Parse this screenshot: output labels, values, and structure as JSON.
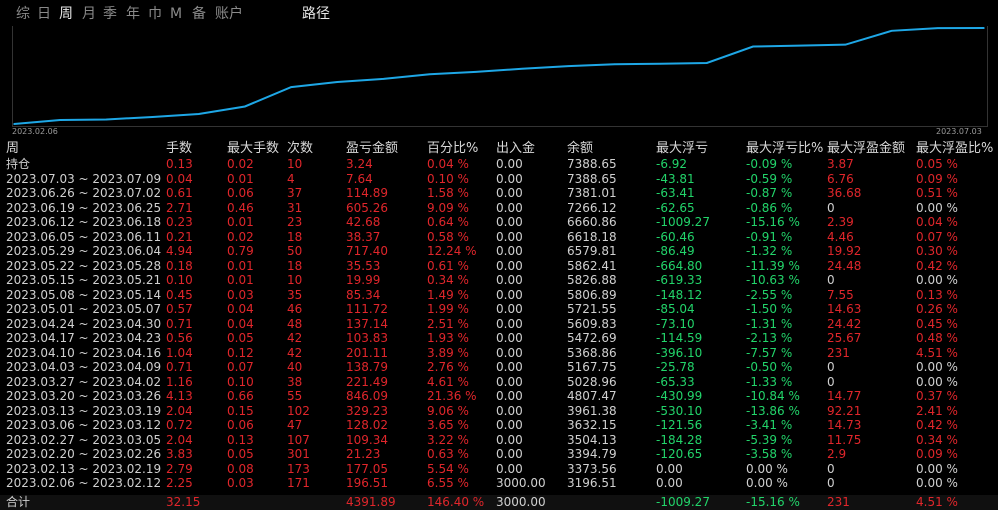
{
  "tabs": [
    {
      "id": "zong",
      "label": "综"
    },
    {
      "id": "ri",
      "label": "日"
    },
    {
      "id": "zhou",
      "label": "周",
      "active": true
    },
    {
      "id": "yue",
      "label": "月"
    },
    {
      "id": "ji",
      "label": "季"
    },
    {
      "id": "nian",
      "label": "年"
    },
    {
      "id": "jin",
      "label": "巾"
    },
    {
      "id": "m",
      "label": "M"
    },
    {
      "id": "bei",
      "label": "备"
    },
    {
      "id": "zhanghu",
      "label": "账户"
    }
  ],
  "path_tab": "路径",
  "chart_data": {
    "type": "line",
    "x": [
      "2023.02.06",
      "2023.02.13",
      "2023.02.20",
      "2023.02.27",
      "2023.03.06",
      "2023.03.13",
      "2023.03.20",
      "2023.03.27",
      "2023.04.03",
      "2023.04.10",
      "2023.04.17",
      "2023.04.24",
      "2023.05.01",
      "2023.05.08",
      "2023.05.15",
      "2023.05.22",
      "2023.05.29",
      "2023.06.05",
      "2023.06.12",
      "2023.06.19",
      "2023.06.26",
      "2023.07.03"
    ],
    "values": [
      3196.51,
      3373.56,
      3394.79,
      3504.13,
      3632.15,
      3961.38,
      4807.47,
      5028.96,
      5167.75,
      5368.86,
      5472.69,
      5609.83,
      5721.55,
      5806.89,
      5826.88,
      5862.41,
      6579.81,
      6618.18,
      6660.86,
      7266.12,
      7381.01,
      7388.65
    ],
    "xlabel_start": "2023.02.06",
    "xlabel_end": "2023.07.03",
    "line_color": "#1ea7e6",
    "grid": false
  },
  "table": {
    "headers": [
      "周",
      "手数",
      "最大手数",
      "次数",
      "盈亏金额",
      "百分比%",
      "出入金",
      "余额",
      "最大浮亏",
      "最大浮亏比%",
      "最大浮盈金额",
      "最大浮盈比%"
    ],
    "rows": [
      {
        "period": "持仓",
        "lots": "0.13",
        "max_lots": "0.02",
        "count": "10",
        "pnl": "3.24",
        "pct": "0.04 %",
        "io": "0.00",
        "balance": "7388.65",
        "max_dd": "-6.92",
        "max_dd_pct": "-0.09 %",
        "max_fp": "3.87",
        "max_fp_pct": "0.05 %"
      },
      {
        "period": "2023.07.03 ~ 2023.07.09",
        "lots": "0.04",
        "max_lots": "0.01",
        "count": "4",
        "pnl": "7.64",
        "pct": "0.10 %",
        "io": "0.00",
        "balance": "7388.65",
        "max_dd": "-43.81",
        "max_dd_pct": "-0.59 %",
        "max_fp": "6.76",
        "max_fp_pct": "0.09 %"
      },
      {
        "period": "2023.06.26 ~ 2023.07.02",
        "lots": "0.61",
        "max_lots": "0.06",
        "count": "37",
        "pnl": "114.89",
        "pct": "1.58 %",
        "io": "0.00",
        "balance": "7381.01",
        "max_dd": "-63.41",
        "max_dd_pct": "-0.87 %",
        "max_fp": "36.68",
        "max_fp_pct": "0.51 %"
      },
      {
        "period": "2023.06.19 ~ 2023.06.25",
        "lots": "2.71",
        "max_lots": "0.46",
        "count": "31",
        "pnl": "605.26",
        "pct": "9.09 %",
        "io": "0.00",
        "balance": "7266.12",
        "max_dd": "-62.65",
        "max_dd_pct": "-0.86 %",
        "max_fp": "0",
        "max_fp_pct": "0.00 %"
      },
      {
        "period": "2023.06.12 ~ 2023.06.18",
        "lots": "0.23",
        "max_lots": "0.01",
        "count": "23",
        "pnl": "42.68",
        "pct": "0.64 %",
        "io": "0.00",
        "balance": "6660.86",
        "max_dd": "-1009.27",
        "max_dd_pct": "-15.16 %",
        "max_fp": "2.39",
        "max_fp_pct": "0.04 %"
      },
      {
        "period": "2023.06.05 ~ 2023.06.11",
        "lots": "0.21",
        "max_lots": "0.02",
        "count": "18",
        "pnl": "38.37",
        "pct": "0.58 %",
        "io": "0.00",
        "balance": "6618.18",
        "max_dd": "-60.46",
        "max_dd_pct": "-0.91 %",
        "max_fp": "4.46",
        "max_fp_pct": "0.07 %"
      },
      {
        "period": "2023.05.29 ~ 2023.06.04",
        "lots": "4.94",
        "max_lots": "0.79",
        "count": "50",
        "pnl": "717.40",
        "pct": "12.24 %",
        "io": "0.00",
        "balance": "6579.81",
        "max_dd": "-86.49",
        "max_dd_pct": "-1.32 %",
        "max_fp": "19.92",
        "max_fp_pct": "0.30 %"
      },
      {
        "period": "2023.05.22 ~ 2023.05.28",
        "lots": "0.18",
        "max_lots": "0.01",
        "count": "18",
        "pnl": "35.53",
        "pct": "0.61 %",
        "io": "0.00",
        "balance": "5862.41",
        "max_dd": "-664.80",
        "max_dd_pct": "-11.39 %",
        "max_fp": "24.48",
        "max_fp_pct": "0.42 %"
      },
      {
        "period": "2023.05.15 ~ 2023.05.21",
        "lots": "0.10",
        "max_lots": "0.01",
        "count": "10",
        "pnl": "19.99",
        "pct": "0.34 %",
        "io": "0.00",
        "balance": "5826.88",
        "max_dd": "-619.33",
        "max_dd_pct": "-10.63 %",
        "max_fp": "0",
        "max_fp_pct": "0.00 %"
      },
      {
        "period": "2023.05.08 ~ 2023.05.14",
        "lots": "0.45",
        "max_lots": "0.03",
        "count": "35",
        "pnl": "85.34",
        "pct": "1.49 %",
        "io": "0.00",
        "balance": "5806.89",
        "max_dd": "-148.12",
        "max_dd_pct": "-2.55 %",
        "max_fp": "7.55",
        "max_fp_pct": "0.13 %"
      },
      {
        "period": "2023.05.01 ~ 2023.05.07",
        "lots": "0.57",
        "max_lots": "0.04",
        "count": "46",
        "pnl": "111.72",
        "pct": "1.99 %",
        "io": "0.00",
        "balance": "5721.55",
        "max_dd": "-85.04",
        "max_dd_pct": "-1.50 %",
        "max_fp": "14.63",
        "max_fp_pct": "0.26 %"
      },
      {
        "period": "2023.04.24 ~ 2023.04.30",
        "lots": "0.71",
        "max_lots": "0.04",
        "count": "48",
        "pnl": "137.14",
        "pct": "2.51 %",
        "io": "0.00",
        "balance": "5609.83",
        "max_dd": "-73.10",
        "max_dd_pct": "-1.31 %",
        "max_fp": "24.42",
        "max_fp_pct": "0.45 %"
      },
      {
        "period": "2023.04.17 ~ 2023.04.23",
        "lots": "0.56",
        "max_lots": "0.05",
        "count": "42",
        "pnl": "103.83",
        "pct": "1.93 %",
        "io": "0.00",
        "balance": "5472.69",
        "max_dd": "-114.59",
        "max_dd_pct": "-2.13 %",
        "max_fp": "25.67",
        "max_fp_pct": "0.48 %"
      },
      {
        "period": "2023.04.10 ~ 2023.04.16",
        "lots": "1.04",
        "max_lots": "0.12",
        "count": "42",
        "pnl": "201.11",
        "pct": "3.89 %",
        "io": "0.00",
        "balance": "5368.86",
        "max_dd": "-396.10",
        "max_dd_pct": "-7.57 %",
        "max_fp": "231",
        "max_fp_pct": "4.51 %"
      },
      {
        "period": "2023.04.03 ~ 2023.04.09",
        "lots": "0.71",
        "max_lots": "0.07",
        "count": "40",
        "pnl": "138.79",
        "pct": "2.76 %",
        "io": "0.00",
        "balance": "5167.75",
        "max_dd": "-25.78",
        "max_dd_pct": "-0.50 %",
        "max_fp": "0",
        "max_fp_pct": "0.00 %"
      },
      {
        "period": "2023.03.27 ~ 2023.04.02",
        "lots": "1.16",
        "max_lots": "0.10",
        "count": "38",
        "pnl": "221.49",
        "pct": "4.61 %",
        "io": "0.00",
        "balance": "5028.96",
        "max_dd": "-65.33",
        "max_dd_pct": "-1.33 %",
        "max_fp": "0",
        "max_fp_pct": "0.00 %"
      },
      {
        "period": "2023.03.20 ~ 2023.03.26",
        "lots": "4.13",
        "max_lots": "0.66",
        "count": "55",
        "pnl": "846.09",
        "pct": "21.36 %",
        "io": "0.00",
        "balance": "4807.47",
        "max_dd": "-430.99",
        "max_dd_pct": "-10.84 %",
        "max_fp": "14.77",
        "max_fp_pct": "0.37 %"
      },
      {
        "period": "2023.03.13 ~ 2023.03.19",
        "lots": "2.04",
        "max_lots": "0.15",
        "count": "102",
        "pnl": "329.23",
        "pct": "9.06 %",
        "io": "0.00",
        "balance": "3961.38",
        "max_dd": "-530.10",
        "max_dd_pct": "-13.86 %",
        "max_fp": "92.21",
        "max_fp_pct": "2.41 %"
      },
      {
        "period": "2023.03.06 ~ 2023.03.12",
        "lots": "0.72",
        "max_lots": "0.06",
        "count": "47",
        "pnl": "128.02",
        "pct": "3.65 %",
        "io": "0.00",
        "balance": "3632.15",
        "max_dd": "-121.56",
        "max_dd_pct": "-3.41 %",
        "max_fp": "14.73",
        "max_fp_pct": "0.42 %"
      },
      {
        "period": "2023.02.27 ~ 2023.03.05",
        "lots": "2.04",
        "max_lots": "0.13",
        "count": "107",
        "pnl": "109.34",
        "pct": "3.22 %",
        "io": "0.00",
        "balance": "3504.13",
        "max_dd": "-184.28",
        "max_dd_pct": "-5.39 %",
        "max_fp": "11.75",
        "max_fp_pct": "0.34 %"
      },
      {
        "period": "2023.02.20 ~ 2023.02.26",
        "lots": "3.83",
        "max_lots": "0.05",
        "count": "301",
        "pnl": "21.23",
        "pct": "0.63 %",
        "io": "0.00",
        "balance": "3394.79",
        "max_dd": "-120.65",
        "max_dd_pct": "-3.58 %",
        "max_fp": "2.9",
        "max_fp_pct": "0.09 %"
      },
      {
        "period": "2023.02.13 ~ 2023.02.19",
        "lots": "2.79",
        "max_lots": "0.08",
        "count": "173",
        "pnl": "177.05",
        "pct": "5.54 %",
        "io": "0.00",
        "balance": "3373.56",
        "max_dd": "0.00",
        "max_dd_pct": "0.00 %",
        "max_fp": "0",
        "max_fp_pct": "0.00 %"
      },
      {
        "period": "2023.02.06 ~ 2023.02.12",
        "lots": "2.25",
        "max_lots": "0.03",
        "count": "171",
        "pnl": "196.51",
        "pct": "6.55 %",
        "io": "3000.00",
        "balance": "3196.51",
        "max_dd": "0.00",
        "max_dd_pct": "0.00 %",
        "max_fp": "0",
        "max_fp_pct": "0.00 %"
      }
    ],
    "total": {
      "period": "合计",
      "lots": "32.15",
      "max_lots": "",
      "count": "",
      "pnl": "4391.89",
      "pct": "146.40 %",
      "io": "3000.00",
      "balance": "",
      "max_dd": "-1009.27",
      "max_dd_pct": "-15.16 %",
      "max_fp": "231",
      "max_fp_pct": "4.51 %"
    }
  },
  "colors": {
    "red": "#e0262b",
    "green": "#22d46a",
    "white": "#d0d0d0",
    "line": "#1ea7e6"
  }
}
